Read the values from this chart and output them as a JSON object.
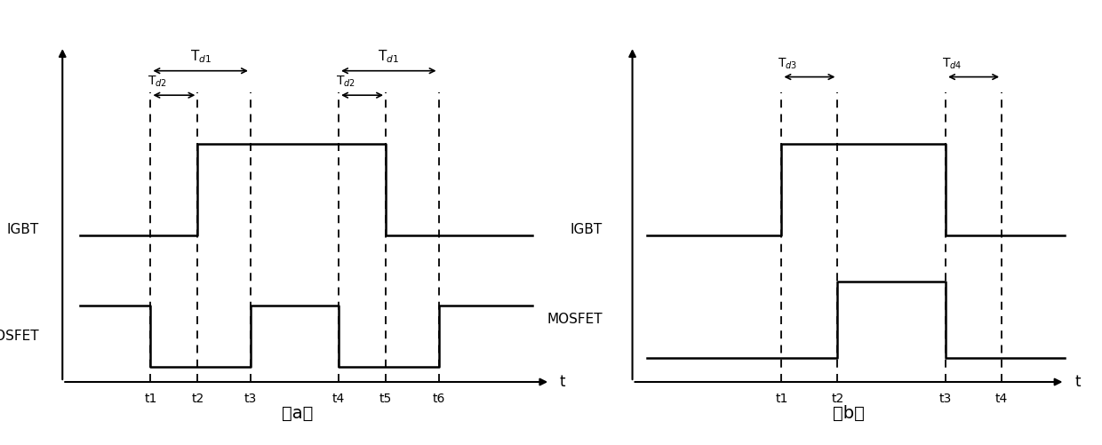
{
  "fig_width": 12.4,
  "fig_height": 5.01,
  "bg_color": "#ffffff",
  "line_color": "#000000",
  "dashed_color": "#000000",
  "a": {
    "t_values": [
      1,
      2,
      3,
      4,
      5,
      6
    ],
    "t_labels": [
      "t1",
      "t2",
      "t3",
      "t4",
      "t5",
      "t6"
    ],
    "igbt_high": 0.75,
    "igbt_low": 0.45,
    "mosfet_high": 0.22,
    "mosfet_low": 0.02,
    "Td1_label": "T$_{d1}$",
    "Td2_label": "T$_{d2}$",
    "label_t": "t",
    "label_IGBT": "IGBT",
    "label_MOSFET": "MOSFET",
    "caption": "（a）"
  },
  "b": {
    "t_values": [
      1,
      2,
      3,
      4
    ],
    "t_labels": [
      "t1",
      "t2",
      "t3",
      "t4"
    ],
    "igbt_high": 0.75,
    "igbt_low": 0.45,
    "mosfet_high": 0.3,
    "mosfet_low": 0.05,
    "Td3_label": "T$_{d3}$",
    "Td4_label": "T$_{d4}$",
    "label_t": "t",
    "label_IGBT": "IGBT",
    "label_MOSFET": "MOSFET",
    "caption": "（b）"
  }
}
